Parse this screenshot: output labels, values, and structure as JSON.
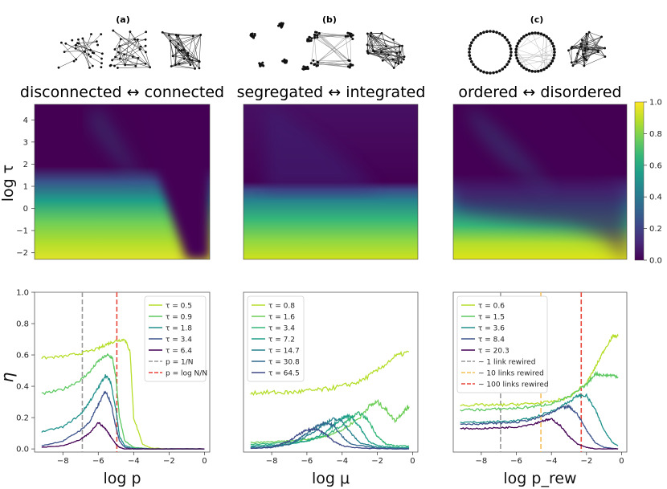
{
  "panels": [
    {
      "label": "(a)",
      "subtitle": "disconnected ↔ connected",
      "net_type": "random"
    },
    {
      "label": "(b)",
      "subtitle": "segregated ↔ integrated",
      "net_type": "modular"
    },
    {
      "label": "(c)",
      "subtitle": "ordered ↔ disordered",
      "net_type": "ring"
    }
  ],
  "colors": {
    "viridis": [
      "#440154",
      "#482878",
      "#3e4989",
      "#31688e",
      "#26828e",
      "#1f9e89",
      "#35b779",
      "#6ece58",
      "#b5de2b",
      "#fde725"
    ],
    "ref_gray": "#999999",
    "ref_orange": "#f5c05a",
    "ref_red": "#e8463a"
  },
  "chart_data": [
    {
      "type": "heatmap",
      "panel": "a",
      "ylabel": "log τ",
      "yticks": [
        "4",
        "3",
        "2",
        "1",
        "0",
        "−1",
        "−2"
      ],
      "ylim": [
        -2.3,
        4.7
      ],
      "colorbar": {
        "range": [
          0.0,
          1.0
        ],
        "ticks": [
          "0.0",
          "0.2",
          "0.4",
          "0.6",
          "0.8",
          "1.0"
        ]
      }
    },
    {
      "type": "heatmap",
      "panel": "b",
      "ylim": [
        -2.3,
        4.7
      ]
    },
    {
      "type": "heatmap",
      "panel": "c",
      "ylim": [
        -2.3,
        4.7
      ]
    },
    {
      "type": "line",
      "panel": "a",
      "xlabel": "log p",
      "ylabel": "η",
      "xlim": [
        -9.6,
        0.3
      ],
      "ylim": [
        -0.02,
        1.0
      ],
      "xticks": [
        "−8",
        "−6",
        "−4",
        "−2",
        "0"
      ],
      "yticks": [
        "0.0",
        "0.2",
        "0.4",
        "0.6",
        "0.8",
        "1.0"
      ],
      "series": [
        {
          "name": "τ = 0.5",
          "x": [
            -9.2,
            -8,
            -7,
            -6,
            -5.5,
            -5,
            -4.5,
            -4.2,
            -4.0,
            -3.5,
            -3,
            -2,
            -1,
            0
          ],
          "values": [
            0.58,
            0.59,
            0.61,
            0.64,
            0.67,
            0.69,
            0.7,
            0.62,
            0.2,
            0.03,
            0.005,
            0.0,
            0.0,
            0.0
          ]
        },
        {
          "name": "τ = 0.9",
          "x": [
            -9.2,
            -8,
            -7,
            -6.5,
            -6,
            -5.5,
            -5.2,
            -5.0,
            -4.8,
            -4.5,
            -4,
            -3,
            -2,
            0
          ],
          "values": [
            0.35,
            0.38,
            0.44,
            0.49,
            0.56,
            0.6,
            0.58,
            0.45,
            0.2,
            0.05,
            0.01,
            0.0,
            0.0,
            0.0
          ]
        },
        {
          "name": "τ = 1.8",
          "x": [
            -9.2,
            -8,
            -7,
            -6.5,
            -6,
            -5.6,
            -5.3,
            -5.0,
            -4.8,
            -4.5,
            -4,
            -3,
            -2,
            0
          ],
          "values": [
            0.11,
            0.14,
            0.22,
            0.3,
            0.39,
            0.47,
            0.43,
            0.25,
            0.08,
            0.02,
            0.005,
            0.0,
            0.0,
            0.0
          ]
        },
        {
          "name": "τ = 3.4",
          "x": [
            -9.2,
            -8,
            -7,
            -6.5,
            -6,
            -5.6,
            -5.3,
            -5.0,
            -4.8,
            -4.5,
            -4,
            -3,
            -2,
            0
          ],
          "values": [
            0.02,
            0.05,
            0.12,
            0.17,
            0.28,
            0.37,
            0.3,
            0.14,
            0.05,
            0.01,
            0.0,
            0.0,
            0.0,
            0.0
          ]
        },
        {
          "name": "τ = 6.4",
          "x": [
            -9.2,
            -8,
            -7,
            -6.5,
            -6,
            -5.6,
            -5.3,
            -5.0,
            -4.8,
            -4.5,
            -4,
            -3,
            -2,
            0
          ],
          "values": [
            0.01,
            0.02,
            0.06,
            0.1,
            0.17,
            0.13,
            0.08,
            0.03,
            0.01,
            0.0,
            0.0,
            0.0,
            0.0,
            0.0
          ]
        }
      ],
      "ref_lines": [
        {
          "name": "p = 1/N",
          "x": -6.9,
          "style": "gray"
        },
        {
          "name": "p = log N/N",
          "x": -4.95,
          "style": "red"
        }
      ],
      "legend": "top-right"
    },
    {
      "type": "line",
      "panel": "b",
      "xlabel": "log μ",
      "xlim": [
        -9.6,
        0.3
      ],
      "ylim": [
        -0.02,
        1.0
      ],
      "xticks": [
        "−8",
        "−6",
        "−4",
        "−2",
        "0"
      ],
      "series": [
        {
          "name": "τ = 0.8",
          "x": [
            -9.2,
            -8,
            -7,
            -6,
            -5,
            -4,
            -3,
            -2,
            -1,
            -0.2
          ],
          "values": [
            0.36,
            0.36,
            0.36,
            0.37,
            0.38,
            0.4,
            0.43,
            0.5,
            0.59,
            0.62
          ]
        },
        {
          "name": "τ = 1.6",
          "x": [
            -9.2,
            -8,
            -7,
            -6,
            -5,
            -4,
            -3,
            -2.5,
            -2,
            -1.5,
            -1,
            -0.5,
            -0.2
          ],
          "values": [
            0.04,
            0.045,
            0.05,
            0.06,
            0.08,
            0.12,
            0.2,
            0.27,
            0.3,
            0.25,
            0.18,
            0.24,
            0.27
          ]
        },
        {
          "name": "τ = 3.4",
          "x": [
            -9.2,
            -8,
            -7,
            -6,
            -5,
            -4,
            -3.5,
            -3,
            -2.5,
            -2,
            -1.5,
            -1,
            -0.2
          ],
          "values": [
            0.03,
            0.035,
            0.04,
            0.05,
            0.08,
            0.15,
            0.2,
            0.23,
            0.18,
            0.08,
            0.03,
            0.02,
            0.02
          ]
        },
        {
          "name": "τ = 7.2",
          "x": [
            -9.2,
            -8,
            -7,
            -6,
            -5,
            -4.5,
            -4,
            -3.5,
            -3,
            -2.5,
            -2,
            -1,
            -0.2
          ],
          "values": [
            0.02,
            0.025,
            0.03,
            0.05,
            0.1,
            0.15,
            0.2,
            0.21,
            0.14,
            0.05,
            0.02,
            0.01,
            0.01
          ]
        },
        {
          "name": "τ = 14.7",
          "x": [
            -9.2,
            -8,
            -7,
            -6,
            -5.5,
            -5,
            -4.5,
            -4,
            -3.5,
            -3,
            -2,
            -1,
            -0.2
          ],
          "values": [
            0.01,
            0.015,
            0.03,
            0.08,
            0.12,
            0.16,
            0.19,
            0.18,
            0.1,
            0.04,
            0.01,
            0.005,
            0.005
          ]
        },
        {
          "name": "τ = 30.8",
          "x": [
            -9.2,
            -8,
            -7,
            -6.5,
            -6,
            -5.5,
            -5,
            -4.5,
            -4,
            -3.5,
            -2,
            -1,
            -0.2
          ],
          "values": [
            0.005,
            0.01,
            0.03,
            0.06,
            0.1,
            0.14,
            0.17,
            0.15,
            0.08,
            0.03,
            0.005,
            0.0,
            0.0
          ]
        },
        {
          "name": "τ = 64.5",
          "x": [
            -9.2,
            -8,
            -7.5,
            -7,
            -6.5,
            -6,
            -5.5,
            -5,
            -4.5,
            -4,
            -3,
            -1,
            -0.2
          ],
          "values": [
            0.005,
            0.01,
            0.03,
            0.05,
            0.09,
            0.12,
            0.13,
            0.1,
            0.05,
            0.02,
            0.005,
            0.0,
            0.0
          ]
        }
      ],
      "legend": "top-left"
    },
    {
      "type": "line",
      "panel": "c",
      "xlabel": "log p_rew",
      "xlim": [
        -9.6,
        0.3
      ],
      "ylim": [
        -0.02,
        1.0
      ],
      "xticks": [
        "−8",
        "−6",
        "−4",
        "−2",
        "0"
      ],
      "series": [
        {
          "name": "τ = 0.6",
          "x": [
            -9.2,
            -8,
            -7,
            -6,
            -5,
            -4,
            -3,
            -2,
            -1.5,
            -1,
            -0.5,
            -0.2
          ],
          "values": [
            0.28,
            0.28,
            0.28,
            0.285,
            0.29,
            0.3,
            0.33,
            0.42,
            0.52,
            0.63,
            0.72,
            0.72
          ]
        },
        {
          "name": "τ = 1.5",
          "x": [
            -9.2,
            -8,
            -7,
            -6,
            -5,
            -4,
            -3,
            -2,
            -1.5,
            -1,
            -0.5,
            -0.2
          ],
          "values": [
            0.25,
            0.25,
            0.255,
            0.26,
            0.27,
            0.29,
            0.33,
            0.41,
            0.48,
            0.47,
            0.47,
            0.46
          ]
        },
        {
          "name": "τ = 3.6",
          "x": [
            -9.2,
            -8,
            -7,
            -6,
            -5,
            -4,
            -3,
            -2.5,
            -2,
            -1.5,
            -1,
            -0.5,
            -0.2
          ],
          "values": [
            0.17,
            0.17,
            0.175,
            0.18,
            0.2,
            0.24,
            0.3,
            0.34,
            0.34,
            0.25,
            0.12,
            0.04,
            0.02
          ]
        },
        {
          "name": "τ = 8.4",
          "x": [
            -9.2,
            -8,
            -7,
            -6,
            -5,
            -4,
            -3.5,
            -3,
            -2.5,
            -2,
            -1.5,
            -1,
            -0.2
          ],
          "values": [
            0.16,
            0.16,
            0.165,
            0.17,
            0.19,
            0.23,
            0.26,
            0.27,
            0.22,
            0.12,
            0.04,
            0.01,
            0.0
          ]
        },
        {
          "name": "τ = 20.3",
          "x": [
            -9.2,
            -8,
            -7,
            -6,
            -5,
            -4.5,
            -4,
            -3.5,
            -3,
            -2.5,
            -2,
            -1.5,
            -0.2
          ],
          "values": [
            0.13,
            0.13,
            0.135,
            0.14,
            0.16,
            0.18,
            0.19,
            0.15,
            0.08,
            0.03,
            0.01,
            0.0,
            0.0
          ]
        }
      ],
      "ref_lines": [
        {
          "name": "~ 1 link rewired",
          "x": -6.9,
          "style": "gray"
        },
        {
          "name": "~ 10 links rewired",
          "x": -4.6,
          "style": "orange"
        },
        {
          "name": "~ 100 links rewired",
          "x": -2.3,
          "style": "red"
        }
      ],
      "legend": "top-left"
    }
  ]
}
